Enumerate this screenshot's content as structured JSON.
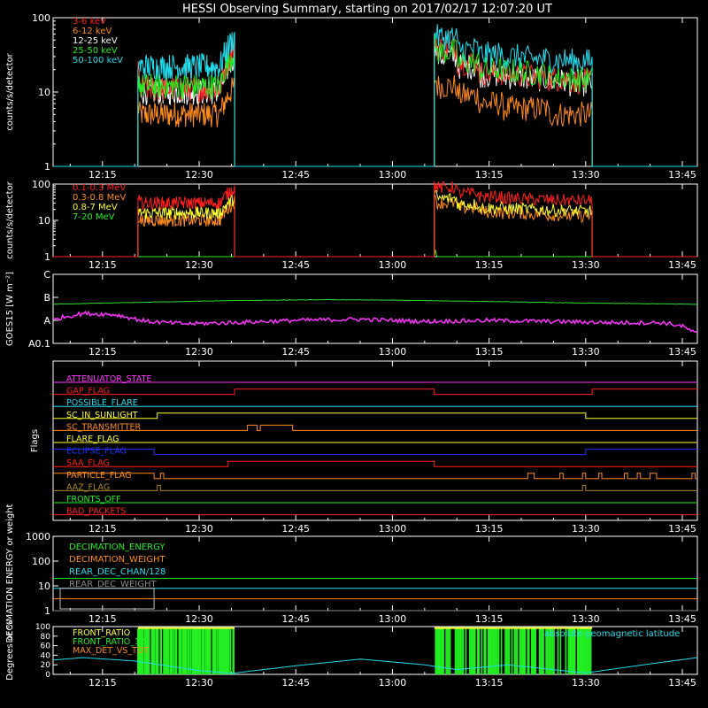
{
  "title": "HESSI Observing Summary, starting on 2017/02/17 12:07:20 UT",
  "time_axis": {
    "start_minutes": 7.333,
    "end_minutes": 107.333,
    "tick_labels": [
      "12:15",
      "12:30",
      "12:45",
      "13:00",
      "13:15",
      "13:30",
      "13:45"
    ],
    "tick_minutes": [
      15,
      30,
      45,
      60,
      75,
      90,
      105
    ]
  },
  "chart_data": [
    {
      "name": "low-energy-lightcurves",
      "type": "line",
      "ylabel": "counts/s/detector",
      "y_scale": "log",
      "ylim": [
        1,
        100
      ],
      "y_tick_labels": [
        "1",
        "10",
        "100"
      ],
      "y_tick_values": [
        1,
        10,
        100
      ],
      "series": [
        {
          "name": "3-6 keV",
          "color": "#ff2020",
          "levels": [
            18,
            11,
            16,
            14,
            13,
            14,
            40,
            25,
            18,
            17,
            16,
            15,
            14
          ]
        },
        {
          "name": "6-12 keV",
          "color": "#ff8c1a",
          "levels": [
            6,
            5,
            5,
            5,
            5,
            5,
            12,
            9,
            7,
            6,
            6,
            5,
            5
          ]
        },
        {
          "name": "12-25 keV",
          "color": "#ffffff",
          "levels": [
            14,
            10,
            12,
            11,
            11,
            12,
            30,
            22,
            17,
            16,
            15,
            14,
            13
          ]
        },
        {
          "name": "25-50 keV",
          "color": "#22ee22",
          "levels": [
            16,
            12,
            14,
            13,
            13,
            14,
            35,
            25,
            20,
            19,
            18,
            16,
            15
          ]
        },
        {
          "name": "50-100 keV",
          "color": "#22ddee",
          "levels": [
            25,
            22,
            24,
            23,
            23,
            25,
            55,
            38,
            32,
            30,
            28,
            27,
            26
          ]
        }
      ],
      "active_intervals": [
        [
          20.5,
          35.5
        ],
        [
          66.5,
          91.0
        ]
      ]
    },
    {
      "name": "high-energy-lightcurves",
      "type": "line",
      "ylabel": "counts/s/detector",
      "y_scale": "log",
      "ylim": [
        1,
        100
      ],
      "y_tick_labels": [
        "1",
        "10",
        "100"
      ],
      "y_tick_values": [
        1,
        10,
        100
      ],
      "series": [
        {
          "name": "0.1-0.3 MeV",
          "color": "#ff2020",
          "levels": [
            35,
            30,
            32,
            31,
            32,
            34,
            80,
            55,
            45,
            40,
            38,
            36,
            35
          ]
        },
        {
          "name": "0.3-0.8 MeV",
          "color": "#ff8c1a",
          "levels": [
            12,
            10,
            11,
            11,
            11,
            12,
            30,
            22,
            17,
            16,
            15,
            14,
            13
          ]
        },
        {
          "name": "0.8-7 MeV",
          "color": "#ffff33",
          "levels": [
            18,
            16,
            17,
            17,
            17,
            18,
            40,
            28,
            22,
            21,
            20,
            19,
            18
          ]
        },
        {
          "name": "7-20 MeV",
          "color": "#22ee22",
          "levels": [
            1,
            1,
            1,
            1,
            1,
            1,
            1,
            1,
            1,
            1,
            1,
            1,
            1
          ]
        }
      ],
      "active_intervals": [
        [
          20.5,
          35.5
        ],
        [
          66.5,
          91.0
        ]
      ]
    },
    {
      "name": "goes-flux",
      "type": "line",
      "ylabel": "GOES15 [W m⁻²]",
      "y_tick_labels": [
        "C",
        "B",
        "A",
        "A0.1"
      ],
      "y_tick_values": [
        3,
        2,
        1,
        0
      ],
      "ylim": [
        0,
        3
      ],
      "series": [
        {
          "name": "long-channel",
          "color": "#33dd33",
          "x": [
            7.3,
            20,
            35,
            50,
            60,
            75,
            90,
            107.3
          ],
          "y": [
            1.7,
            1.78,
            1.86,
            1.9,
            1.88,
            1.82,
            1.75,
            1.7
          ]
        },
        {
          "name": "short-channel",
          "color": "#ff33ff",
          "x": [
            7.3,
            9,
            12,
            17,
            22,
            28,
            35,
            45,
            55,
            65,
            75,
            85,
            95,
            102,
            105,
            107.3
          ],
          "y": [
            1.0,
            1.15,
            1.3,
            1.25,
            0.95,
            0.85,
            0.9,
            1.0,
            1.05,
            0.95,
            1.0,
            0.95,
            0.9,
            0.9,
            0.75,
            0.4
          ]
        }
      ]
    },
    {
      "name": "flags",
      "type": "line",
      "ylabel": "Flags",
      "series": [
        {
          "name": "ATTENUATOR_STATE",
          "color": "#ff33ff",
          "changes": []
        },
        {
          "name": "GAP_FLAG",
          "color": "#ff2020",
          "changes": [
            [
              35.5,
              1
            ],
            [
              66.5,
              0
            ],
            [
              91.0,
              1
            ]
          ]
        },
        {
          "name": "POSSIBLE_FLARE",
          "color": "#22ddee",
          "changes": []
        },
        {
          "name": "SC_IN_SUNLIGHT",
          "color": "#ffff33",
          "changes": [
            [
              23.5,
              1
            ],
            [
              90.0,
              0
            ]
          ]
        },
        {
          "name": "SC_TRANSMITTER",
          "color": "#ff8c1a",
          "changes": [
            [
              37.5,
              1
            ],
            [
              39.0,
              0
            ],
            [
              39.5,
              1
            ],
            [
              44.5,
              0
            ]
          ]
        },
        {
          "name": "FLARE_FLAG",
          "color": "#ffff33",
          "changes": []
        },
        {
          "name": "ECLIPSE_FLAG",
          "color": "#2233ff",
          "changes": [
            [
              23.0,
              0
            ],
            [
              90.0,
              1
            ]
          ]
        },
        {
          "name": "SAA_FLAG",
          "color": "#ff2020",
          "changes": [
            [
              34.5,
              1
            ],
            [
              66.5,
              0
            ]
          ]
        },
        {
          "name": "PARTICLE_FLAG",
          "color": "#ff8c1a",
          "changes": [
            [
              23.0,
              0
            ],
            [
              24.0,
              1
            ],
            [
              24.5,
              0
            ],
            [
              81.0,
              1
            ],
            [
              82.0,
              0
            ],
            [
              86.0,
              1
            ],
            [
              86.5,
              0
            ],
            [
              89.5,
              1
            ],
            [
              90.0,
              0
            ],
            [
              92.0,
              1
            ],
            [
              92.5,
              0
            ],
            [
              96.0,
              1
            ],
            [
              96.5,
              0
            ],
            [
              98.0,
              1
            ],
            [
              98.5,
              0
            ],
            [
              100.0,
              1
            ],
            [
              101.0,
              0
            ],
            [
              106.5,
              1
            ],
            [
              107.0,
              0
            ]
          ]
        },
        {
          "name": "AAZ_FLAG",
          "color": "#aa8822",
          "changes": [
            [
              23.5,
              1
            ],
            [
              24.0,
              0
            ],
            [
              89.5,
              1
            ],
            [
              90.0,
              0
            ]
          ]
        },
        {
          "name": "FRONTS_OFF",
          "color": "#22ee22",
          "changes": []
        },
        {
          "name": "BAD_PACKETS",
          "color": "#ff2020",
          "changes": []
        }
      ]
    },
    {
      "name": "decimation",
      "type": "line",
      "ylabel": "DECIMATION ENERGY or weight",
      "y_scale": "log",
      "ylim": [
        1,
        1000
      ],
      "y_tick_labels": [
        "1",
        "10",
        "100",
        "1000"
      ],
      "y_tick_values": [
        1,
        10,
        100,
        1000
      ],
      "series": [
        {
          "name": "DECIMATION_ENERGY",
          "color": "#22ee22",
          "constant": 20
        },
        {
          "name": "DECIMATION_WEIGHT",
          "color": "#ff8c1a",
          "constant": 3
        },
        {
          "name": "REAR_DEC_CHAN/128",
          "color": "#22ddee",
          "constant": 8
        },
        {
          "name": "REAR_DEC_WEIGHT",
          "color": "#888888",
          "constant": 1
        }
      ]
    },
    {
      "name": "ratios",
      "type": "line",
      "ylabel": "Degrees or %",
      "ylim": [
        0,
        100
      ],
      "y_tick_labels": [
        "0",
        "20",
        "40",
        "60",
        "80",
        "100"
      ],
      "y_tick_values": [
        0,
        20,
        40,
        60,
        80,
        100
      ],
      "annotation": "absolute geomagnetic latitude",
      "series": [
        {
          "name": "FRONT_RATIO",
          "color": "#ffff33"
        },
        {
          "name": "FRONT_RATIO_1225",
          "color": "#22ee22"
        },
        {
          "name": "MAX_DET_VS_TOT",
          "color": "#ff8c1a"
        },
        {
          "name": "geomagnetic-latitude",
          "color": "#22ddee",
          "x": [
            7.3,
            12,
            20,
            30,
            35,
            45,
            55,
            65,
            70,
            78,
            85,
            90,
            100,
            107.3
          ],
          "y": [
            30,
            35,
            28,
            8,
            2,
            18,
            32,
            20,
            10,
            20,
            10,
            3,
            22,
            35
          ]
        }
      ],
      "active_intervals": [
        [
          20.5,
          35.5
        ],
        [
          66.5,
          91.0
        ]
      ]
    }
  ]
}
